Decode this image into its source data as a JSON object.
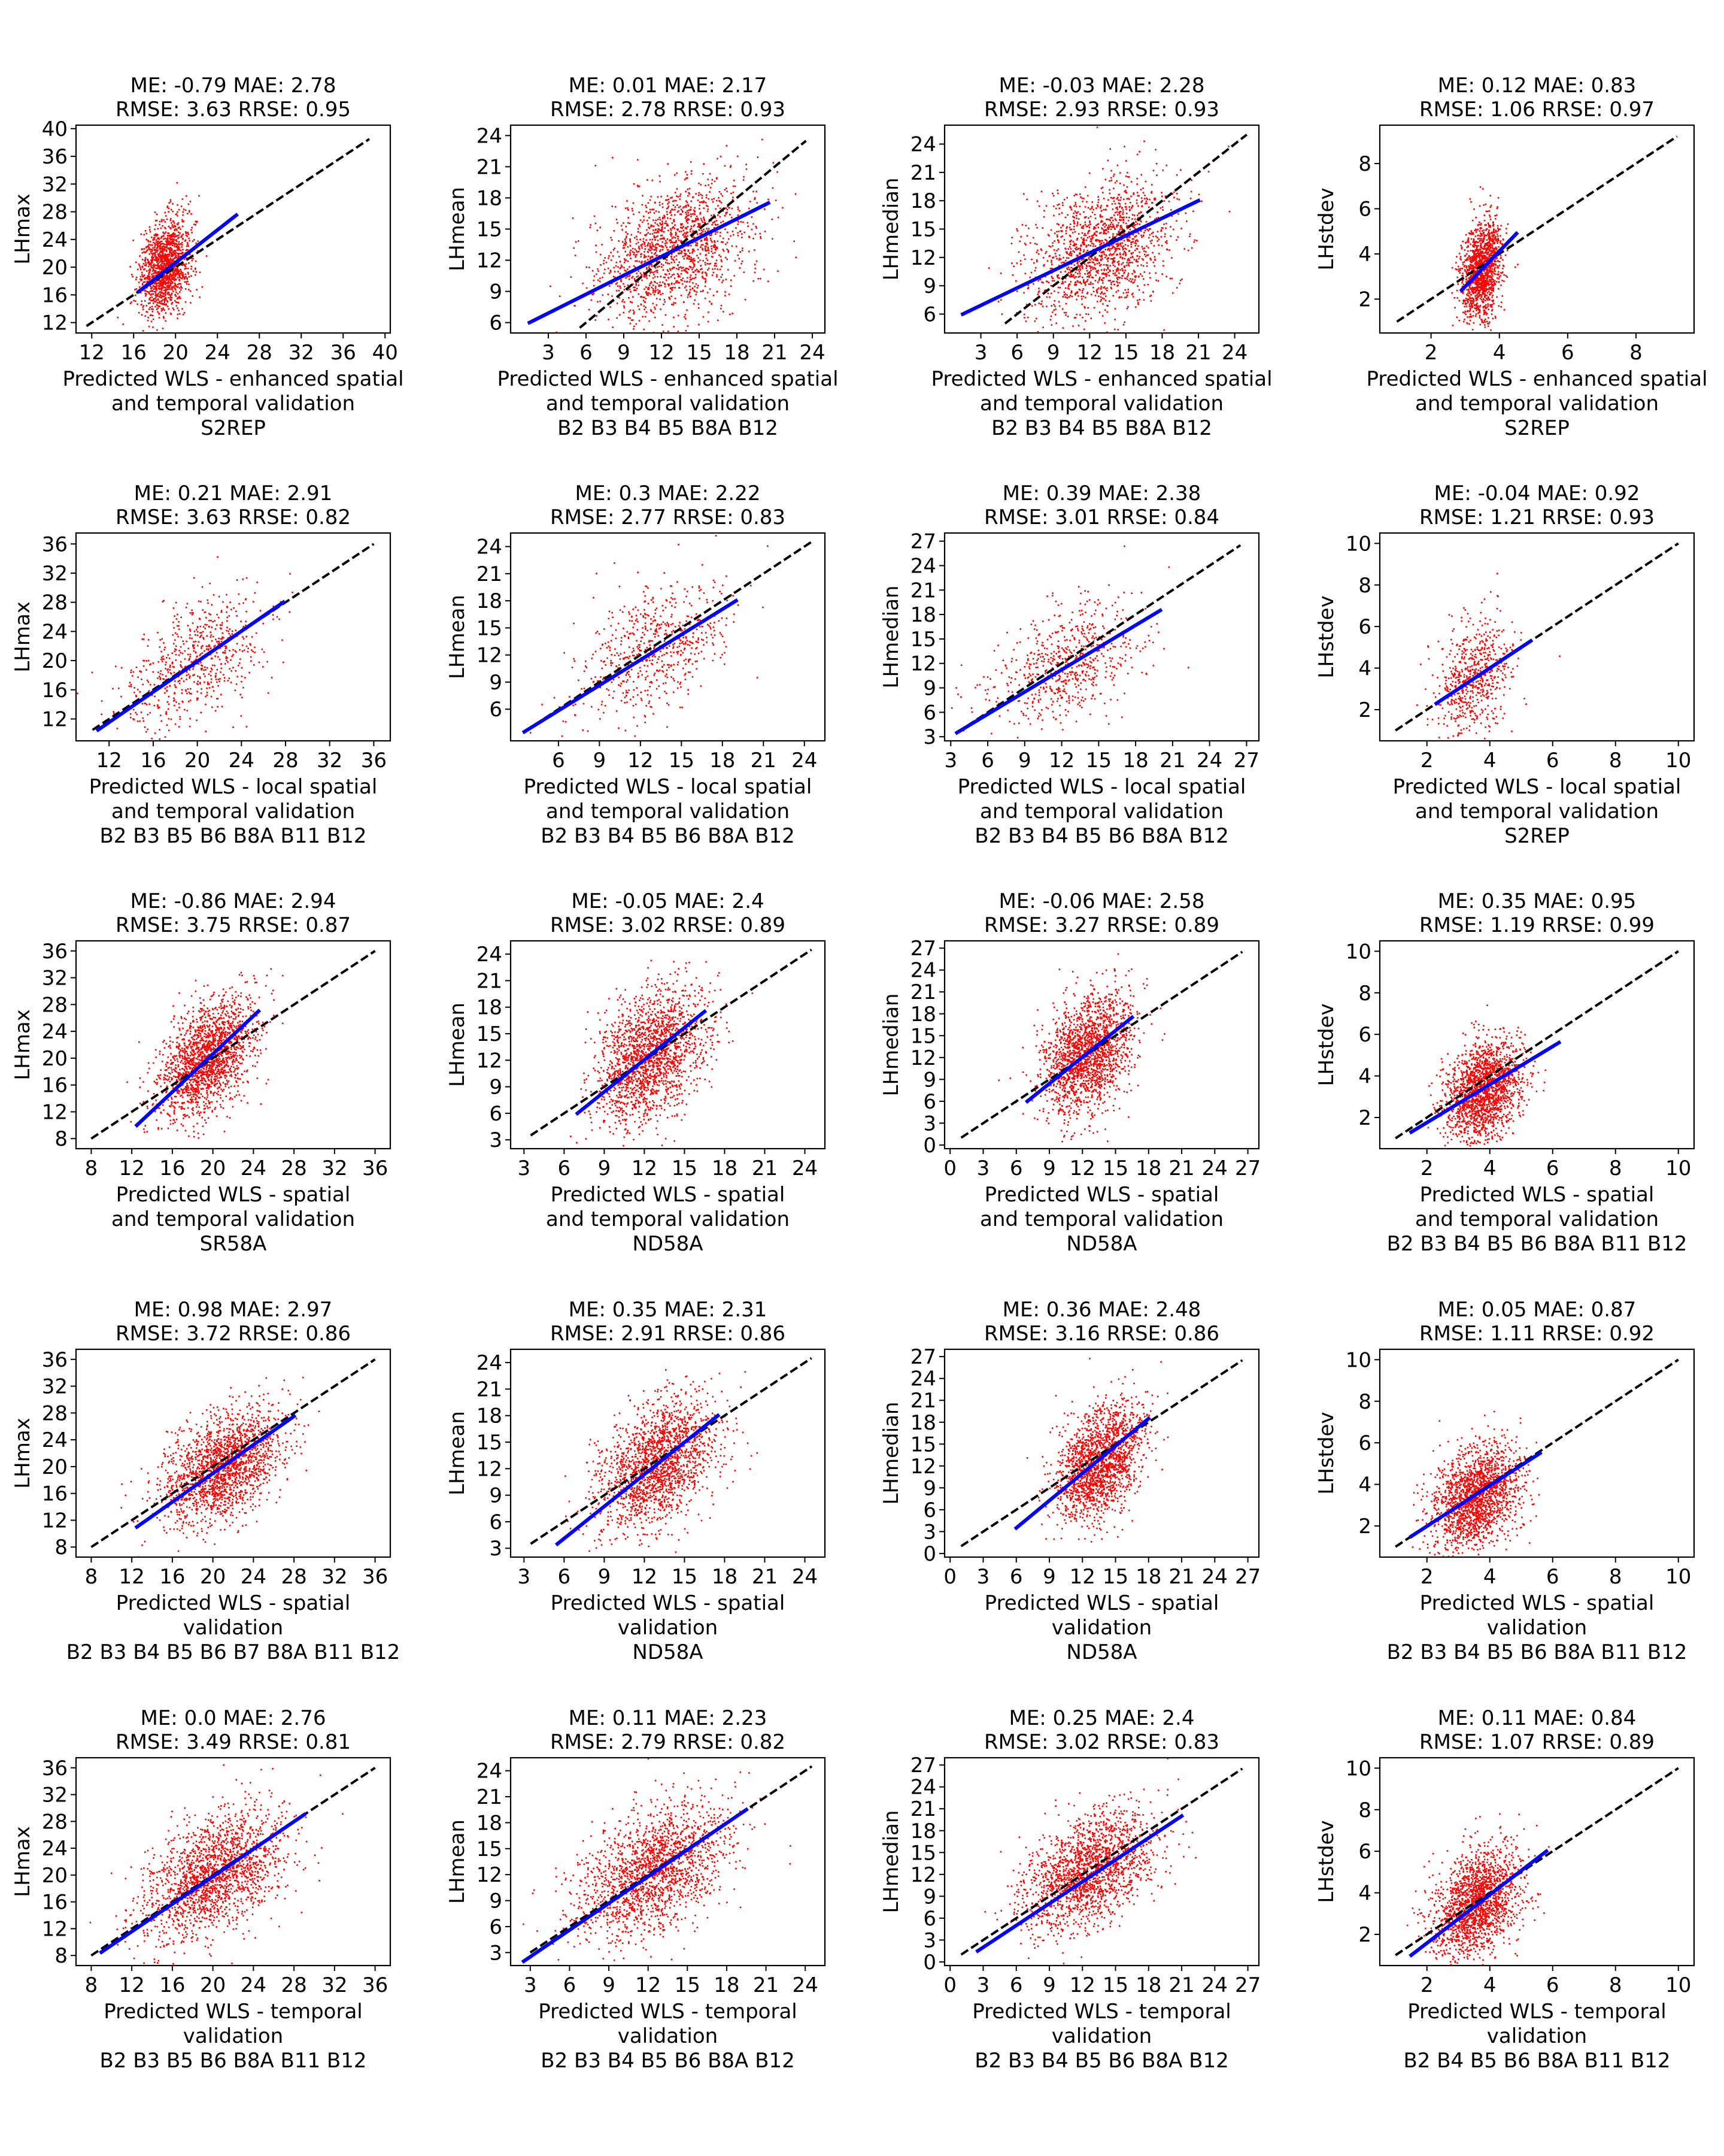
{
  "chart_data": [
    {
      "type": "scatter",
      "title": [
        "ME: -0.79 MAE: 2.78",
        "RMSE: 3.63 RRSE: 0.95"
      ],
      "xlabel": [
        "Predicted WLS - enhanced spatial",
        "and temporal validation",
        "S2REP"
      ],
      "ylabel": "LHmax",
      "xlim": [
        10.5,
        40.5
      ],
      "ylim": [
        10.5,
        40.5
      ],
      "xticks": [
        12,
        16,
        20,
        24,
        28,
        32,
        36,
        40
      ],
      "yticks": [
        12,
        16,
        20,
        24,
        28,
        32,
        36,
        40
      ],
      "identity_line": [
        11.5,
        38.5
      ],
      "fit_line": {
        "x": [
          16.5,
          25.8
        ],
        "y": [
          16.5,
          27.5
        ]
      },
      "scatter_center": [
        19,
        20
      ],
      "scatter_spread": [
        1.2,
        3.3
      ],
      "points": 1400
    },
    {
      "type": "scatter",
      "title": [
        "ME: 0.01 MAE: 2.17",
        "RMSE: 2.78 RRSE: 0.93"
      ],
      "xlabel": [
        "Predicted WLS - enhanced spatial",
        "and temporal validation",
        "B2 B3 B4 B5 B8A B12"
      ],
      "ylabel": "LHmean",
      "xlim": [
        0,
        25
      ],
      "ylim": [
        5,
        25
      ],
      "xticks": [
        3,
        6,
        9,
        12,
        15,
        18,
        21,
        24
      ],
      "yticks": [
        6,
        9,
        12,
        15,
        18,
        21,
        24
      ],
      "identity_line": [
        5.5,
        23.5
      ],
      "fit_line": {
        "x": [
          1.5,
          20.5
        ],
        "y": [
          6,
          17.5
        ]
      },
      "scatter_center": [
        13,
        13
      ],
      "scatter_spread": [
        3,
        3.2
      ],
      "points": 1500
    },
    {
      "type": "scatter",
      "title": [
        "ME: -0.03 MAE: 2.28",
        "RMSE: 2.93 RRSE: 0.93"
      ],
      "xlabel": [
        "Predicted WLS - enhanced spatial",
        "and temporal validation",
        "B2 B3 B4 B5 B8A B12"
      ],
      "ylabel": "LHmedian",
      "xlim": [
        0,
        26
      ],
      "ylim": [
        4,
        26
      ],
      "xticks": [
        3,
        6,
        9,
        12,
        15,
        18,
        21,
        24
      ],
      "yticks": [
        6,
        9,
        12,
        15,
        18,
        21,
        24
      ],
      "identity_line": [
        5,
        25
      ],
      "fit_line": {
        "x": [
          1.5,
          21
        ],
        "y": [
          6,
          18
        ]
      },
      "scatter_center": [
        13,
        13
      ],
      "scatter_spread": [
        3,
        3.4
      ],
      "points": 1500
    },
    {
      "type": "scatter",
      "title": [
        "ME: 0.12 MAE: 0.83",
        "RMSE: 1.06 RRSE: 0.97"
      ],
      "xlabel": [
        "Predicted WLS - enhanced spatial",
        "and temporal validation",
        "S2REP"
      ],
      "ylabel": "LHstdev",
      "xlim": [
        0.5,
        9.7
      ],
      "ylim": [
        0.5,
        9.7
      ],
      "xticks": [
        2,
        4,
        6,
        8
      ],
      "yticks": [
        2,
        4,
        6,
        8
      ],
      "identity_line": [
        1,
        9.2
      ],
      "fit_line": {
        "x": [
          2.9,
          4.5
        ],
        "y": [
          2.4,
          4.9
        ]
      },
      "scatter_center": [
        3.5,
        3.3
      ],
      "scatter_spread": [
        0.3,
        1.1
      ],
      "points": 1400
    },
    {
      "type": "scatter",
      "title": [
        "ME: 0.21 MAE: 2.91",
        "RMSE: 3.63 RRSE: 0.82"
      ],
      "xlabel": [
        "Predicted WLS - local spatial",
        "and temporal validation",
        "B2 B3 B5 B6 B8A B11 B12"
      ],
      "ylabel": "LHmax",
      "xlim": [
        9,
        37.5
      ],
      "ylim": [
        9,
        37.5
      ],
      "xticks": [
        12,
        16,
        20,
        24,
        28,
        32,
        36
      ],
      "yticks": [
        12,
        16,
        20,
        24,
        28,
        32,
        36
      ],
      "identity_line": [
        10.5,
        36
      ],
      "fit_line": {
        "x": [
          11,
          27.8
        ],
        "y": [
          10.5,
          28
        ]
      },
      "scatter_center": [
        20,
        20
      ],
      "scatter_spread": [
        3.2,
        4
      ],
      "points": 650
    },
    {
      "type": "scatter",
      "title": [
        "ME: 0.3 MAE: 2.22",
        "RMSE: 2.77 RRSE: 0.83"
      ],
      "xlabel": [
        "Predicted WLS - local spatial",
        "and temporal validation",
        "B2 B3 B4 B5 B6 B8A B12"
      ],
      "ylabel": "LHmean",
      "xlim": [
        2.5,
        25.5
      ],
      "ylim": [
        2.5,
        25.5
      ],
      "xticks": [
        6,
        9,
        12,
        15,
        18,
        21,
        24
      ],
      "yticks": [
        6,
        9,
        12,
        15,
        18,
        21,
        24
      ],
      "identity_line": [
        3.5,
        24.5
      ],
      "fit_line": {
        "x": [
          3.5,
          19
        ],
        "y": [
          3.5,
          18
        ]
      },
      "scatter_center": [
        13,
        12.5
      ],
      "scatter_spread": [
        2.8,
        3.2
      ],
      "points": 650
    },
    {
      "type": "scatter",
      "title": [
        "ME: 0.39 MAE: 2.38",
        "RMSE: 3.01 RRSE: 0.84"
      ],
      "xlabel": [
        "Predicted WLS - local spatial",
        "and temporal validation",
        "B2 B3 B4 B5 B6 B8A B12"
      ],
      "ylabel": "LHmedian",
      "xlim": [
        2.5,
        28
      ],
      "ylim": [
        2.5,
        28
      ],
      "xticks": [
        3,
        6,
        9,
        12,
        15,
        18,
        21,
        24,
        27
      ],
      "yticks": [
        3,
        6,
        9,
        12,
        15,
        18,
        21,
        24,
        27
      ],
      "identity_line": [
        3.5,
        26.5
      ],
      "fit_line": {
        "x": [
          3.5,
          20
        ],
        "y": [
          3.5,
          18.5
        ]
      },
      "scatter_center": [
        12.5,
        12
      ],
      "scatter_spread": [
        3,
        3.4
      ],
      "points": 650
    },
    {
      "type": "scatter",
      "title": [
        "ME: -0.04 MAE: 0.92",
        "RMSE: 1.21 RRSE: 0.93"
      ],
      "xlabel": [
        "Predicted WLS - local spatial",
        "and temporal validation",
        "S2REP"
      ],
      "ylabel": "LHstdev",
      "xlim": [
        0.5,
        10.5
      ],
      "ylim": [
        0.5,
        10.5
      ],
      "xticks": [
        2,
        4,
        6,
        8,
        10
      ],
      "yticks": [
        2,
        4,
        6,
        8,
        10
      ],
      "identity_line": [
        1,
        10
      ],
      "fit_line": {
        "x": [
          2.3,
          5.3
        ],
        "y": [
          2.3,
          5.3
        ]
      },
      "scatter_center": [
        3.5,
        3.5
      ],
      "scatter_spread": [
        0.6,
        1.3
      ],
      "points": 650
    },
    {
      "type": "scatter",
      "title": [
        "ME: -0.86 MAE: 2.94",
        "RMSE: 3.75 RRSE: 0.87"
      ],
      "xlabel": [
        "Predicted WLS - spatial",
        "and temporal validation",
        "SR58A"
      ],
      "ylabel": "LHmax",
      "xlim": [
        6.5,
        37.5
      ],
      "ylim": [
        6.5,
        37.5
      ],
      "xticks": [
        8,
        12,
        16,
        20,
        24,
        28,
        32,
        36
      ],
      "yticks": [
        8,
        12,
        16,
        20,
        24,
        28,
        32,
        36
      ],
      "identity_line": [
        8,
        36
      ],
      "fit_line": {
        "x": [
          12.5,
          24.5
        ],
        "y": [
          10,
          27
        ]
      },
      "scatter_center": [
        19.5,
        20
      ],
      "scatter_spread": [
        2.3,
        4
      ],
      "points": 1800
    },
    {
      "type": "scatter",
      "title": [
        "ME: -0.05 MAE: 2.4",
        "RMSE: 3.02 RRSE: 0.89"
      ],
      "xlabel": [
        "Predicted WLS - spatial",
        "and temporal validation",
        "ND58A"
      ],
      "ylabel": "LHmean",
      "xlim": [
        2,
        25.5
      ],
      "ylim": [
        2,
        25.5
      ],
      "xticks": [
        3,
        6,
        9,
        12,
        15,
        18,
        21,
        24
      ],
      "yticks": [
        3,
        6,
        9,
        12,
        15,
        18,
        21,
        24
      ],
      "identity_line": [
        3.5,
        24.5
      ],
      "fit_line": {
        "x": [
          7,
          16.5
        ],
        "y": [
          6,
          17.5
        ]
      },
      "scatter_center": [
        12.5,
        12.5
      ],
      "scatter_spread": [
        2,
        3.5
      ],
      "points": 1800
    },
    {
      "type": "scatter",
      "title": [
        "ME: -0.06 MAE: 2.58",
        "RMSE: 3.27 RRSE: 0.89"
      ],
      "xlabel": [
        "Predicted WLS - spatial",
        "and temporal validation",
        "ND58A"
      ],
      "ylabel": "LHmedian",
      "xlim": [
        -0.5,
        28
      ],
      "ylim": [
        -0.5,
        28
      ],
      "xticks": [
        0,
        3,
        6,
        9,
        12,
        15,
        18,
        21,
        24,
        27
      ],
      "yticks": [
        0,
        3,
        6,
        9,
        12,
        15,
        18,
        21,
        24,
        27
      ],
      "identity_line": [
        1,
        26.5
      ],
      "fit_line": {
        "x": [
          7,
          16.5
        ],
        "y": [
          6,
          17.5
        ]
      },
      "scatter_center": [
        12.5,
        12.5
      ],
      "scatter_spread": [
        2,
        3.8
      ],
      "points": 1800
    },
    {
      "type": "scatter",
      "title": [
        "ME: 0.35 MAE: 0.95",
        "RMSE: 1.19 RRSE: 0.99"
      ],
      "xlabel": [
        "Predicted WLS - spatial",
        "and temporal validation",
        "B2 B3 B4 B5 B6 B8A B11 B12"
      ],
      "ylabel": "LHstdev",
      "xlim": [
        0.5,
        10.5
      ],
      "ylim": [
        0.5,
        10.5
      ],
      "xticks": [
        2,
        4,
        6,
        8,
        10
      ],
      "yticks": [
        2,
        4,
        6,
        8,
        10
      ],
      "identity_line": [
        1,
        10
      ],
      "fit_line": {
        "x": [
          1.5,
          6.2
        ],
        "y": [
          1.3,
          5.6
        ]
      },
      "scatter_center": [
        3.8,
        3.3
      ],
      "scatter_spread": [
        0.6,
        1.2
      ],
      "points": 1800
    },
    {
      "type": "scatter",
      "title": [
        "ME: 0.98 MAE: 2.97",
        "RMSE: 3.72 RRSE: 0.86"
      ],
      "xlabel": [
        "Predicted WLS - spatial",
        "validation",
        "B2 B3 B4 B5 B6 B7 B8A B11 B12"
      ],
      "ylabel": "LHmax",
      "xlim": [
        6.5,
        37.5
      ],
      "ylim": [
        6.5,
        37.5
      ],
      "xticks": [
        8,
        12,
        16,
        20,
        24,
        28,
        32,
        36
      ],
      "yticks": [
        8,
        12,
        16,
        20,
        24,
        28,
        32,
        36
      ],
      "identity_line": [
        8,
        36
      ],
      "fit_line": {
        "x": [
          12.5,
          28
        ],
        "y": [
          11,
          27.5
        ]
      },
      "scatter_center": [
        21,
        20
      ],
      "scatter_spread": [
        3,
        4
      ],
      "points": 1800
    },
    {
      "type": "scatter",
      "title": [
        "ME: 0.35 MAE: 2.31",
        "RMSE: 2.91 RRSE: 0.86"
      ],
      "xlabel": [
        "Predicted WLS - spatial",
        "validation",
        "ND58A"
      ],
      "ylabel": "LHmean",
      "xlim": [
        2,
        25.5
      ],
      "ylim": [
        2,
        25.5
      ],
      "xticks": [
        3,
        6,
        9,
        12,
        15,
        18,
        21,
        24
      ],
      "yticks": [
        3,
        6,
        9,
        12,
        15,
        18,
        21,
        24
      ],
      "identity_line": [
        3.5,
        24.5
      ],
      "fit_line": {
        "x": [
          5.5,
          17.5
        ],
        "y": [
          3.5,
          18
        ]
      },
      "scatter_center": [
        13,
        12.5
      ],
      "scatter_spread": [
        2.2,
        3.4
      ],
      "points": 1800
    },
    {
      "type": "scatter",
      "title": [
        "ME: 0.36 MAE: 2.48",
        "RMSE: 3.16 RRSE: 0.86"
      ],
      "xlabel": [
        "Predicted WLS - spatial",
        "validation",
        "ND58A"
      ],
      "ylabel": "LHmedian",
      "xlim": [
        -0.5,
        28
      ],
      "ylim": [
        -0.5,
        28
      ],
      "xticks": [
        0,
        3,
        6,
        9,
        12,
        15,
        18,
        21,
        24,
        27
      ],
      "yticks": [
        0,
        3,
        6,
        9,
        12,
        15,
        18,
        21,
        24,
        27
      ],
      "identity_line": [
        1,
        26.5
      ],
      "fit_line": {
        "x": [
          6,
          18
        ],
        "y": [
          3.5,
          18.5
        ]
      },
      "scatter_center": [
        13.5,
        12.5
      ],
      "scatter_spread": [
        2,
        3.6
      ],
      "points": 1800
    },
    {
      "type": "scatter",
      "title": [
        "ME: 0.05 MAE: 0.87",
        "RMSE: 1.11 RRSE: 0.92"
      ],
      "xlabel": [
        "Predicted WLS - spatial",
        "validation",
        "B2 B3 B4 B5 B6 B8A B11 B12"
      ],
      "ylabel": "LHstdev",
      "xlim": [
        0.5,
        10.5
      ],
      "ylim": [
        0.5,
        10.5
      ],
      "xticks": [
        2,
        4,
        6,
        8,
        10
      ],
      "yticks": [
        2,
        4,
        6,
        8,
        10
      ],
      "identity_line": [
        1,
        10
      ],
      "fit_line": {
        "x": [
          1.5,
          5.6
        ],
        "y": [
          1.5,
          5.5
        ]
      },
      "scatter_center": [
        3.6,
        3.4
      ],
      "scatter_spread": [
        0.7,
        1.2
      ],
      "points": 1800
    },
    {
      "type": "scatter",
      "title": [
        "ME: 0.0 MAE: 2.76",
        "RMSE: 3.49 RRSE: 0.81"
      ],
      "xlabel": [
        "Predicted WLS - temporal",
        "validation",
        "B2 B3 B5 B6 B8A B11 B12"
      ],
      "ylabel": "LHmax",
      "xlim": [
        6.5,
        37.5
      ],
      "ylim": [
        6.5,
        37.5
      ],
      "xticks": [
        8,
        12,
        16,
        20,
        24,
        28,
        32,
        36
      ],
      "yticks": [
        8,
        12,
        16,
        20,
        24,
        28,
        32,
        36
      ],
      "identity_line": [
        8,
        36
      ],
      "fit_line": {
        "x": [
          9,
          29
        ],
        "y": [
          8.5,
          29
        ]
      },
      "scatter_center": [
        20,
        20
      ],
      "scatter_spread": [
        3.5,
        4.2
      ],
      "points": 1800
    },
    {
      "type": "scatter",
      "title": [
        "ME: 0.11 MAE: 2.23",
        "RMSE: 2.79 RRSE: 0.82"
      ],
      "xlabel": [
        "Predicted WLS - temporal",
        "validation",
        "B2 B3 B4 B5 B6 B8A B12"
      ],
      "ylabel": "LHmean",
      "xlim": [
        1.5,
        25.5
      ],
      "ylim": [
        1.5,
        25.5
      ],
      "xticks": [
        3,
        6,
        9,
        12,
        15,
        18,
        21,
        24
      ],
      "yticks": [
        3,
        6,
        9,
        12,
        15,
        18,
        21,
        24
      ],
      "identity_line": [
        3,
        24.5
      ],
      "fit_line": {
        "x": [
          2.5,
          19.5
        ],
        "y": [
          2,
          19.5
        ]
      },
      "scatter_center": [
        12.5,
        12.5
      ],
      "scatter_spread": [
        2.8,
        3.4
      ],
      "points": 1800
    },
    {
      "type": "scatter",
      "title": [
        "ME: 0.25 MAE: 2.4",
        "RMSE: 3.02 RRSE: 0.83"
      ],
      "xlabel": [
        "Predicted WLS - temporal",
        "validation",
        "B2 B3 B4 B5 B6 B8A B12"
      ],
      "ylabel": "LHmedian",
      "xlim": [
        -0.5,
        28
      ],
      "ylim": [
        -0.5,
        28
      ],
      "xticks": [
        0,
        3,
        6,
        9,
        12,
        15,
        18,
        21,
        24,
        27
      ],
      "yticks": [
        0,
        3,
        6,
        9,
        12,
        15,
        18,
        21,
        24,
        27
      ],
      "identity_line": [
        1,
        26.5
      ],
      "fit_line": {
        "x": [
          2.5,
          21
        ],
        "y": [
          1.5,
          20
        ]
      },
      "scatter_center": [
        12.5,
        12.5
      ],
      "scatter_spread": [
        3,
        3.6
      ],
      "points": 1800
    },
    {
      "type": "scatter",
      "title": [
        "ME: 0.11 MAE: 0.84",
        "RMSE: 1.07 RRSE: 0.89"
      ],
      "xlabel": [
        "Predicted WLS - temporal",
        "validation",
        "B2 B4 B5 B6 B8A B11 B12"
      ],
      "ylabel": "LHstdev",
      "xlim": [
        0.5,
        10.5
      ],
      "ylim": [
        0.5,
        10.5
      ],
      "xticks": [
        2,
        4,
        6,
        8,
        10
      ],
      "yticks": [
        2,
        4,
        6,
        8,
        10
      ],
      "identity_line": [
        1,
        10
      ],
      "fit_line": {
        "x": [
          1.5,
          5.8
        ],
        "y": [
          1,
          6
        ]
      },
      "scatter_center": [
        3.6,
        3.5
      ],
      "scatter_spread": [
        0.7,
        1.2
      ],
      "points": 1800
    }
  ],
  "colors": {
    "points": "#ff0000",
    "fit_line": "#0000ff",
    "identity_line": "#000000",
    "axes": "#000000"
  }
}
